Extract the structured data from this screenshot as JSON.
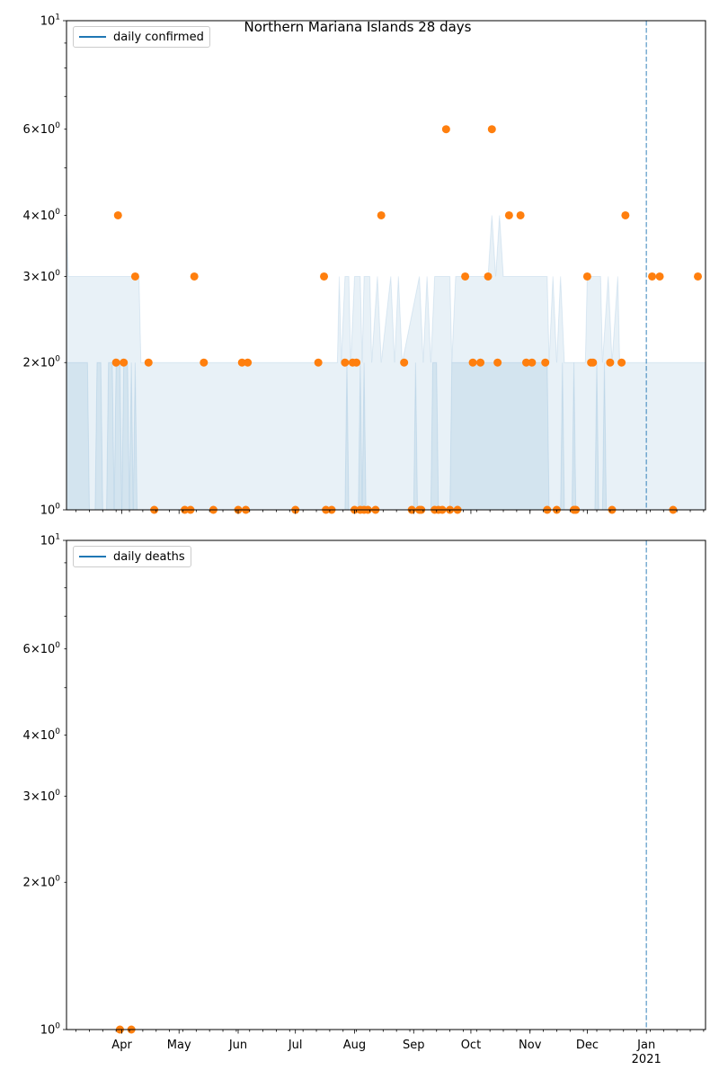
{
  "title": "Northern Mariana Islands 28 days",
  "colors": {
    "line": "#1f77b4",
    "points": "#ff7f0e",
    "fill": "#1f77b4",
    "vline": "#1f77b4"
  },
  "x_tick_labels": [
    "Apr",
    "May",
    "Jun",
    "Jul",
    "Aug",
    "Sep",
    "Oct",
    "Nov",
    "Dec",
    "Jan\n2021"
  ],
  "y_tick_labels": [
    "10^0",
    "2×10^0",
    "3×10^0",
    "4×10^0",
    "6×10^0",
    "10^1"
  ],
  "chart_data": [
    {
      "type": "scatter",
      "legend": "daily confirmed",
      "legend_position": "top-left",
      "yscale": "log",
      "ylim": [
        1,
        10
      ],
      "xlim": [
        "2020-03-03",
        "2021-02-01"
      ],
      "vline": "2021-01-01",
      "band_outer_upper": [
        [
          "2020-03-03",
          4
        ],
        [
          "2020-03-04",
          3
        ],
        [
          "2020-04-10",
          3
        ],
        [
          "2020-04-11",
          2
        ],
        [
          "2020-07-23",
          2
        ],
        [
          "2020-07-24",
          3
        ],
        [
          "2020-07-25",
          2
        ],
        [
          "2020-07-27",
          3
        ],
        [
          "2020-07-29",
          3
        ],
        [
          "2020-07-30",
          2
        ],
        [
          "2020-08-01",
          3
        ],
        [
          "2020-08-04",
          3
        ],
        [
          "2020-08-05",
          2
        ],
        [
          "2020-08-06",
          3
        ],
        [
          "2020-08-09",
          3
        ],
        [
          "2020-08-10",
          2
        ],
        [
          "2020-08-13",
          3
        ],
        [
          "2020-08-15",
          2
        ],
        [
          "2020-08-20",
          3
        ],
        [
          "2020-08-22",
          2
        ],
        [
          "2020-08-24",
          3
        ],
        [
          "2020-08-26",
          2
        ],
        [
          "2020-09-04",
          3
        ],
        [
          "2020-09-06",
          2
        ],
        [
          "2020-09-08",
          3
        ],
        [
          "2020-09-10",
          2
        ],
        [
          "2020-09-12",
          3
        ],
        [
          "2020-09-20",
          3
        ],
        [
          "2020-09-21",
          2
        ],
        [
          "2020-09-23",
          3
        ],
        [
          "2020-10-10",
          3
        ],
        [
          "2020-10-12",
          4
        ],
        [
          "2020-10-14",
          3
        ],
        [
          "2020-10-16",
          4
        ],
        [
          "2020-10-18",
          3
        ],
        [
          "2020-11-10",
          3
        ],
        [
          "2020-11-11",
          2
        ],
        [
          "2020-11-13",
          3
        ],
        [
          "2020-11-15",
          2
        ],
        [
          "2020-11-17",
          3
        ],
        [
          "2020-11-19",
          2
        ],
        [
          "2020-11-30",
          2
        ],
        [
          "2020-12-01",
          3
        ],
        [
          "2020-12-08",
          3
        ],
        [
          "2020-12-09",
          2
        ],
        [
          "2020-12-12",
          3
        ],
        [
          "2020-12-14",
          2
        ],
        [
          "2020-12-17",
          3
        ],
        [
          "2020-12-18",
          2
        ],
        [
          "2021-02-01",
          2
        ]
      ],
      "band_inner_upper": [
        [
          "2020-03-03",
          2
        ],
        [
          "2020-03-14",
          2
        ],
        [
          "2020-03-15",
          1
        ],
        [
          "2020-03-18",
          1
        ],
        [
          "2020-03-19",
          2
        ],
        [
          "2020-03-21",
          2
        ],
        [
          "2020-03-22",
          1
        ],
        [
          "2020-03-24",
          1
        ],
        [
          "2020-03-25",
          2
        ],
        [
          "2020-03-27",
          2
        ],
        [
          "2020-03-28",
          1
        ],
        [
          "2020-03-29",
          2
        ],
        [
          "2020-03-31",
          2
        ],
        [
          "2020-04-01",
          1
        ],
        [
          "2020-04-02",
          2
        ],
        [
          "2020-04-04",
          2
        ],
        [
          "2020-04-05",
          1
        ],
        [
          "2020-04-06",
          2
        ],
        [
          "2020-04-07",
          1
        ],
        [
          "2020-04-08",
          2
        ],
        [
          "2020-04-09",
          1
        ],
        [
          "2020-07-27",
          1
        ],
        [
          "2020-07-28",
          2
        ],
        [
          "2020-07-29",
          1
        ],
        [
          "2020-08-03",
          1
        ],
        [
          "2020-08-04",
          2
        ],
        [
          "2020-08-05",
          1
        ],
        [
          "2020-08-06",
          2
        ],
        [
          "2020-08-07",
          1
        ],
        [
          "2020-09-01",
          1
        ],
        [
          "2020-09-02",
          2
        ],
        [
          "2020-09-03",
          1
        ],
        [
          "2020-09-10",
          1
        ],
        [
          "2020-09-11",
          2
        ],
        [
          "2020-09-13",
          2
        ],
        [
          "2020-09-14",
          1
        ],
        [
          "2020-09-20",
          1
        ],
        [
          "2020-09-21",
          2
        ],
        [
          "2020-11-10",
          2
        ],
        [
          "2020-11-11",
          1
        ],
        [
          "2020-11-17",
          1
        ],
        [
          "2020-11-18",
          2
        ],
        [
          "2020-11-19",
          1
        ],
        [
          "2020-11-23",
          1
        ],
        [
          "2020-11-24",
          2
        ],
        [
          "2020-11-25",
          1
        ],
        [
          "2020-12-05",
          1
        ],
        [
          "2020-12-06",
          2
        ],
        [
          "2020-12-07",
          1
        ],
        [
          "2020-12-09",
          1
        ],
        [
          "2020-12-10",
          2
        ],
        [
          "2020-12-11",
          1
        ],
        [
          "2021-02-01",
          1
        ]
      ],
      "points": [
        [
          "2020-03-29",
          2
        ],
        [
          "2020-03-30",
          4
        ],
        [
          "2020-04-02",
          2
        ],
        [
          "2020-04-08",
          3
        ],
        [
          "2020-04-15",
          2
        ],
        [
          "2020-04-18",
          1
        ],
        [
          "2020-05-04",
          1
        ],
        [
          "2020-05-07",
          1
        ],
        [
          "2020-05-09",
          3
        ],
        [
          "2020-05-14",
          2
        ],
        [
          "2020-05-19",
          1
        ],
        [
          "2020-06-01",
          1
        ],
        [
          "2020-06-03",
          2
        ],
        [
          "2020-06-05",
          1
        ],
        [
          "2020-06-06",
          2
        ],
        [
          "2020-07-01",
          1
        ],
        [
          "2020-07-13",
          2
        ],
        [
          "2020-07-16",
          3
        ],
        [
          "2020-07-17",
          1
        ],
        [
          "2020-07-20",
          1
        ],
        [
          "2020-07-27",
          2
        ],
        [
          "2020-07-31",
          2
        ],
        [
          "2020-08-02",
          2
        ],
        [
          "2020-08-01",
          1
        ],
        [
          "2020-08-04",
          1
        ],
        [
          "2020-08-06",
          1
        ],
        [
          "2020-08-08",
          1
        ],
        [
          "2020-08-12",
          1
        ],
        [
          "2020-08-15",
          4
        ],
        [
          "2020-08-27",
          2
        ],
        [
          "2020-08-31",
          1
        ],
        [
          "2020-09-04",
          1
        ],
        [
          "2020-09-05",
          1
        ],
        [
          "2020-09-12",
          1
        ],
        [
          "2020-09-14",
          1
        ],
        [
          "2020-09-16",
          1
        ],
        [
          "2020-09-18",
          6
        ],
        [
          "2020-09-20",
          1
        ],
        [
          "2020-09-24",
          1
        ],
        [
          "2020-09-28",
          3
        ],
        [
          "2020-10-02",
          2
        ],
        [
          "2020-10-06",
          2
        ],
        [
          "2020-10-10",
          3
        ],
        [
          "2020-10-12",
          6
        ],
        [
          "2020-10-15",
          2
        ],
        [
          "2020-10-21",
          4
        ],
        [
          "2020-10-27",
          4
        ],
        [
          "2020-10-30",
          2
        ],
        [
          "2020-11-02",
          2
        ],
        [
          "2020-11-09",
          2
        ],
        [
          "2020-11-10",
          1
        ],
        [
          "2020-11-15",
          1
        ],
        [
          "2020-11-24",
          1
        ],
        [
          "2020-11-25",
          1
        ],
        [
          "2020-12-01",
          3
        ],
        [
          "2020-12-03",
          2
        ],
        [
          "2020-12-04",
          2
        ],
        [
          "2020-12-13",
          2
        ],
        [
          "2020-12-14",
          1
        ],
        [
          "2020-12-19",
          2
        ],
        [
          "2020-12-21",
          4
        ],
        [
          "2021-01-04",
          3
        ],
        [
          "2021-01-08",
          3
        ],
        [
          "2021-01-15",
          1
        ],
        [
          "2021-01-28",
          3
        ]
      ]
    },
    {
      "type": "scatter",
      "legend": "daily deaths",
      "legend_position": "top-left",
      "yscale": "log",
      "ylim": [
        1,
        10
      ],
      "xlim": [
        "2020-03-03",
        "2021-02-01"
      ],
      "vline": "2021-01-01",
      "points": [
        [
          "2020-03-31",
          1
        ],
        [
          "2020-04-06",
          1
        ]
      ]
    }
  ]
}
